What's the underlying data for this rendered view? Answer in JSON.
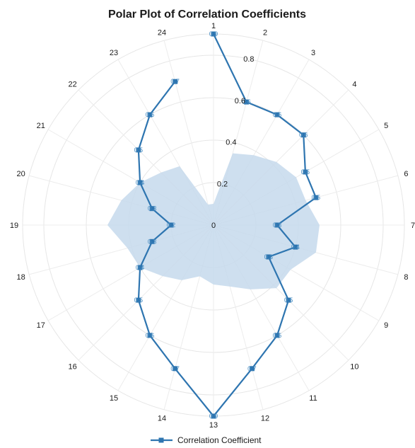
{
  "chart_data": {
    "type": "line",
    "subtype": "polar",
    "title": "Polar Plot of Correlation Coefficients",
    "angular_categories": [
      "1",
      "2",
      "3",
      "4",
      "5",
      "6",
      "7",
      "8",
      "9",
      "10",
      "11",
      "12",
      "13",
      "14",
      "15",
      "16",
      "17",
      "18",
      "19",
      "20",
      "21",
      "22",
      "23",
      "24"
    ],
    "radial_ticks": [
      "0",
      "0.2",
      "0.4",
      "0.6",
      "0.8"
    ],
    "radial_range": [
      0,
      0.9
    ],
    "grid": true,
    "legend": {
      "position": "bottom",
      "entries": [
        "Correlation Coefficient"
      ]
    },
    "series": [
      {
        "name": "Correlation Coefficient",
        "values": [
          0.9,
          0.6,
          0.6,
          0.6,
          0.5,
          0.5,
          0.3,
          0.4,
          0.3,
          0.5,
          0.6,
          0.7,
          0.9,
          0.7,
          0.6,
          0.5,
          0.4,
          0.3,
          0.2,
          0.3,
          0.4,
          0.5,
          0.6,
          0.7
        ],
        "labels": [
          "0.9",
          "0.6",
          "0.6",
          "0.6",
          "0.5",
          "0.5",
          "0.3",
          "0.4",
          "0.3",
          "0.5",
          "0.6",
          "0.7",
          "0.9",
          "0.7",
          "0.6",
          "0.5",
          "0.4",
          "0.3",
          "0.2",
          "0.3",
          "0.4",
          "0.5",
          "0.6",
          "0.7"
        ],
        "color": "#2e75b0",
        "marker": "square"
      }
    ],
    "band": {
      "values": [
        0.1,
        0.35,
        0.38,
        0.42,
        0.45,
        0.45,
        0.5,
        0.5,
        0.42,
        0.42,
        0.35,
        0.3,
        0.28,
        0.25,
        0.3,
        0.34,
        0.4,
        0.42,
        0.5,
        0.45,
        0.4,
        0.35,
        0.32,
        0.1
      ],
      "color": "#c6d9ec"
    }
  }
}
